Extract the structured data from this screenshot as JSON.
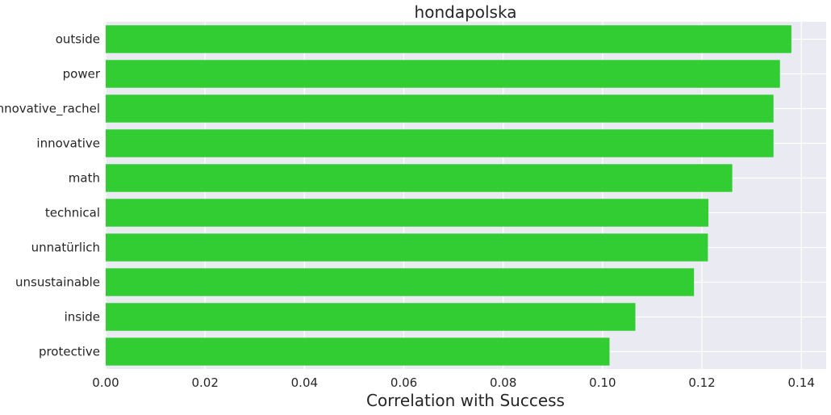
{
  "chart_data": {
    "type": "bar",
    "orientation": "horizontal",
    "title": "hondapolska",
    "xlabel": "Correlation with Success",
    "ylabel": "",
    "categories": [
      "outside",
      "power",
      "innovative_rachel",
      "innovative",
      "math",
      "technical",
      "unnatürlich",
      "unsustainable",
      "inside",
      "protective"
    ],
    "values": [
      0.138,
      0.1357,
      0.1344,
      0.1344,
      0.1261,
      0.1213,
      0.1212,
      0.1184,
      0.1066,
      0.1014
    ],
    "xlim": [
      0.0,
      0.145
    ],
    "xticks": [
      "0.00",
      "0.02",
      "0.04",
      "0.06",
      "0.08",
      "0.10",
      "0.12",
      "0.14"
    ],
    "grid": true,
    "colors": {
      "bar": "#32cd32",
      "background": "#eaeaf2",
      "grid": "#ffffff"
    }
  }
}
